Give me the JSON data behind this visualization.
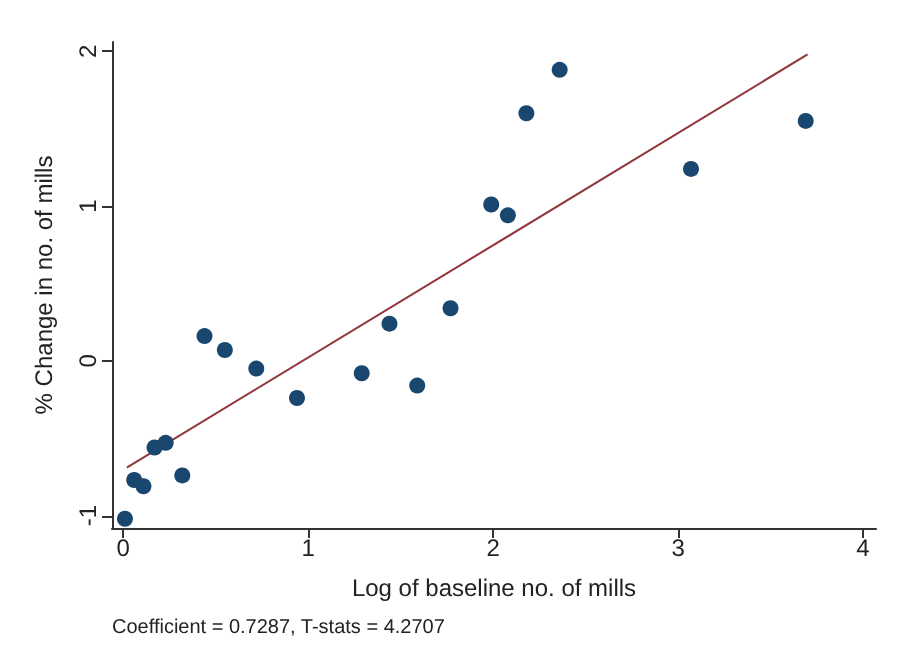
{
  "chart_data": {
    "type": "scatter",
    "xlabel": "Log of baseline no. of mills",
    "ylabel": "% Change in no. of mills",
    "annotations": [
      "Coefficient = 0.7287, T-stats = 4.2707"
    ],
    "xlim": [
      -0.06,
      4.07
    ],
    "ylim": [
      -1.08,
      2.06
    ],
    "xticks": [
      0,
      1,
      2,
      3,
      4
    ],
    "yticks": [
      -1,
      0,
      1,
      2
    ],
    "grid": false,
    "marker": "circle",
    "series": [
      {
        "color": "#1a476f",
        "x": [
          0.01,
          0.06,
          0.11,
          0.17,
          0.23,
          0.32,
          0.44,
          0.55,
          0.72,
          0.94,
          1.29,
          1.44,
          1.59,
          1.77,
          1.99,
          2.08,
          2.18,
          2.36,
          3.07,
          3.69
        ],
        "values": [
          -1.02,
          -0.77,
          -0.81,
          -0.56,
          -0.53,
          -0.74,
          0.16,
          0.07,
          -0.05,
          -0.24,
          -0.08,
          0.24,
          -0.16,
          0.34,
          1.01,
          0.94,
          1.6,
          1.88,
          1.24,
          1.55
        ]
      },
      {
        "type": "line",
        "color": "#90353b",
        "marker": "none",
        "line_style": "solid",
        "x": [
          0.02,
          3.7
        ],
        "values": [
          -0.69,
          1.98
        ]
      }
    ]
  }
}
